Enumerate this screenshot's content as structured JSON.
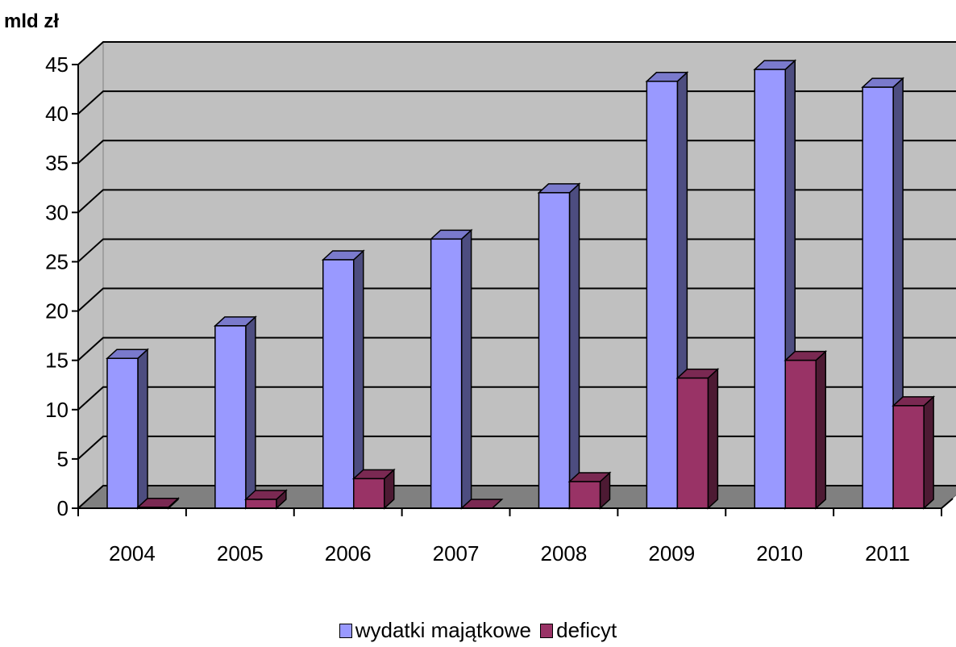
{
  "chart_data": {
    "type": "bar",
    "unit_label": "mld zł",
    "categories": [
      "2004",
      "2005",
      "2006",
      "2007",
      "2008",
      "2009",
      "2010",
      "2011"
    ],
    "series": [
      {
        "name": "wydatki majątkowe",
        "color": "#9999ff",
        "values": [
          15.2,
          18.5,
          25.2,
          27.3,
          32.0,
          43.3,
          44.5,
          42.7
        ]
      },
      {
        "name": "deficyt",
        "color": "#993366",
        "values": [
          0.1,
          0.9,
          3.0,
          0.0,
          2.7,
          13.2,
          15.0,
          10.4
        ]
      }
    ],
    "ylim": [
      0,
      45
    ],
    "yticks": [
      0,
      5,
      10,
      15,
      20,
      25,
      30,
      35,
      40,
      45
    ],
    "grid": true,
    "legend_position": "bottom"
  }
}
